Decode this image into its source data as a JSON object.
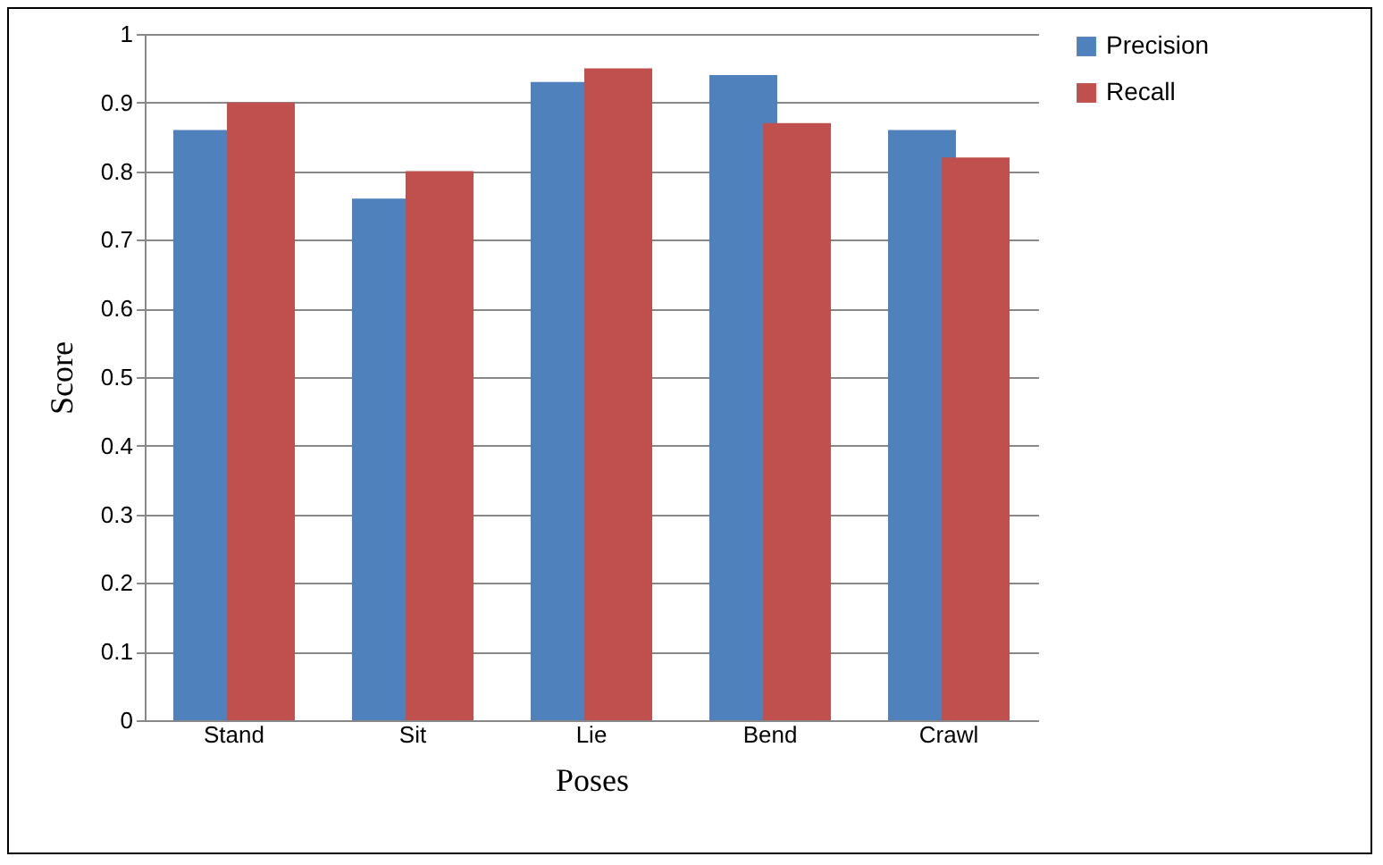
{
  "chart_data": {
    "type": "bar",
    "xlabel": "Poses",
    "ylabel": "Score",
    "categories": [
      "Stand",
      "Sit",
      "Lie",
      "Bend",
      "Crawl"
    ],
    "series": [
      {
        "name": "Precision",
        "color": "#4f81bd",
        "values": [
          0.86,
          0.76,
          0.93,
          0.94,
          0.86
        ]
      },
      {
        "name": "Recall",
        "color": "#c0504d",
        "values": [
          0.9,
          0.8,
          0.95,
          0.87,
          0.82
        ]
      }
    ],
    "ylim": [
      0,
      1
    ],
    "yticks": [
      0,
      0.1,
      0.2,
      0.3,
      0.4,
      0.5,
      0.6,
      0.7,
      0.8,
      0.9,
      1
    ],
    "grid": "y",
    "legend": "right"
  }
}
